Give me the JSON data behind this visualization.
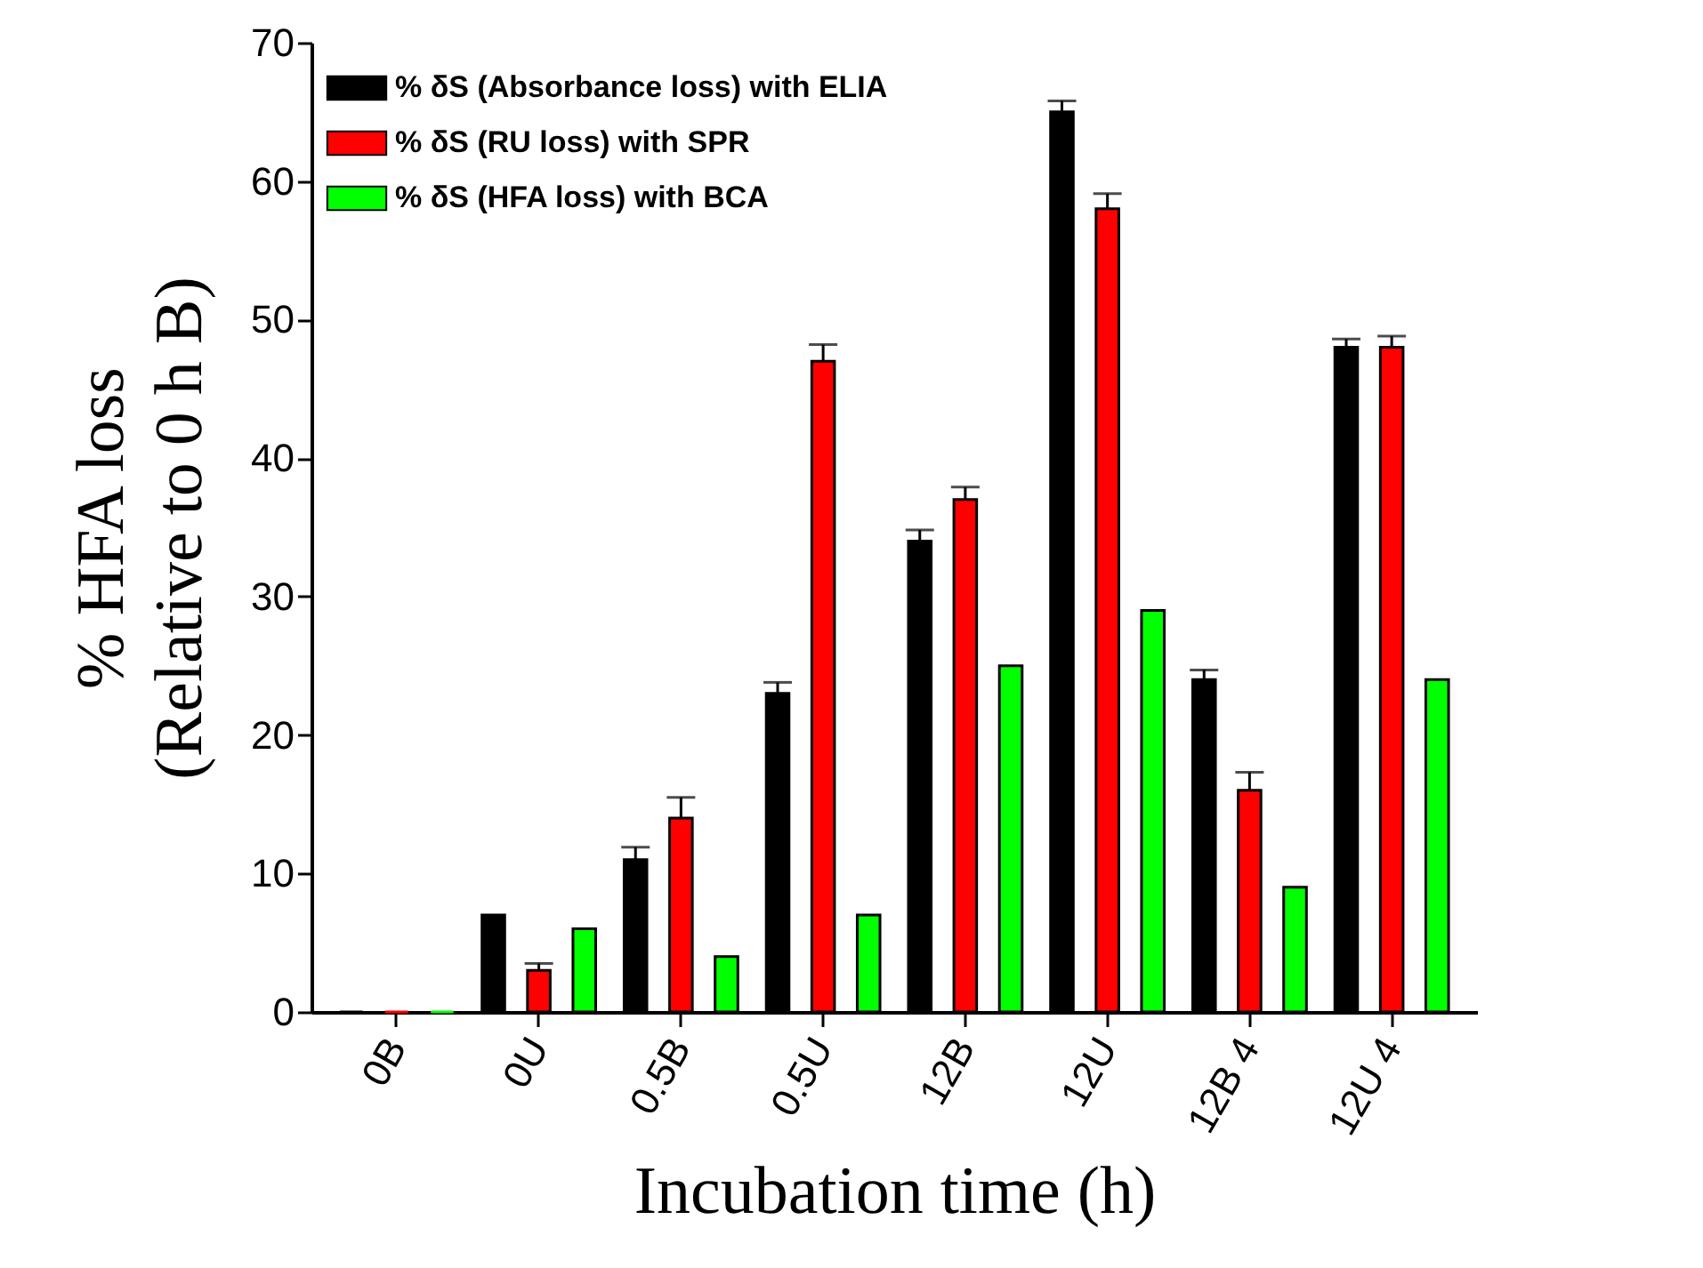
{
  "chart_data": {
    "type": "bar",
    "xlabel": "Incubation time (h)",
    "ylabel": "% HFA loss\n(Relative to 0 h B)",
    "categories": [
      "0B",
      "0U",
      "0.5B",
      "0.5U",
      "12B",
      "12U",
      "12B 4",
      "12U 4"
    ],
    "series": [
      {
        "name": "% δS (Absorbance loss) with ELIA",
        "color": "#000000",
        "values": [
          0,
          7,
          11,
          23,
          34,
          65,
          24,
          48
        ],
        "errors": [
          null,
          null,
          [
            11,
            11.9
          ],
          [
            23,
            23.8
          ],
          [
            34,
            34.8
          ],
          [
            65,
            65.8
          ],
          [
            24,
            24.7
          ],
          [
            48,
            48.6
          ]
        ]
      },
      {
        "name": "% δS (RU loss) with SPR",
        "color": "#ff0000",
        "values": [
          0,
          3,
          14,
          47,
          37,
          58,
          16,
          48
        ],
        "errors": [
          null,
          [
            3,
            3.5
          ],
          [
            14,
            15.5
          ],
          [
            47,
            48.2
          ],
          [
            37,
            37.9
          ],
          [
            58,
            59.1
          ],
          [
            16,
            17.3
          ],
          [
            48,
            48.8
          ]
        ]
      },
      {
        "name": "% δS (HFA loss) with BCA",
        "color": "#00ff00",
        "values": [
          0,
          6,
          4,
          7,
          25,
          29,
          9,
          24
        ]
      }
    ],
    "ylim": [
      0,
      70
    ],
    "yticks": [
      0,
      10,
      20,
      30,
      40,
      50,
      60,
      70
    ],
    "legend": "top left"
  }
}
